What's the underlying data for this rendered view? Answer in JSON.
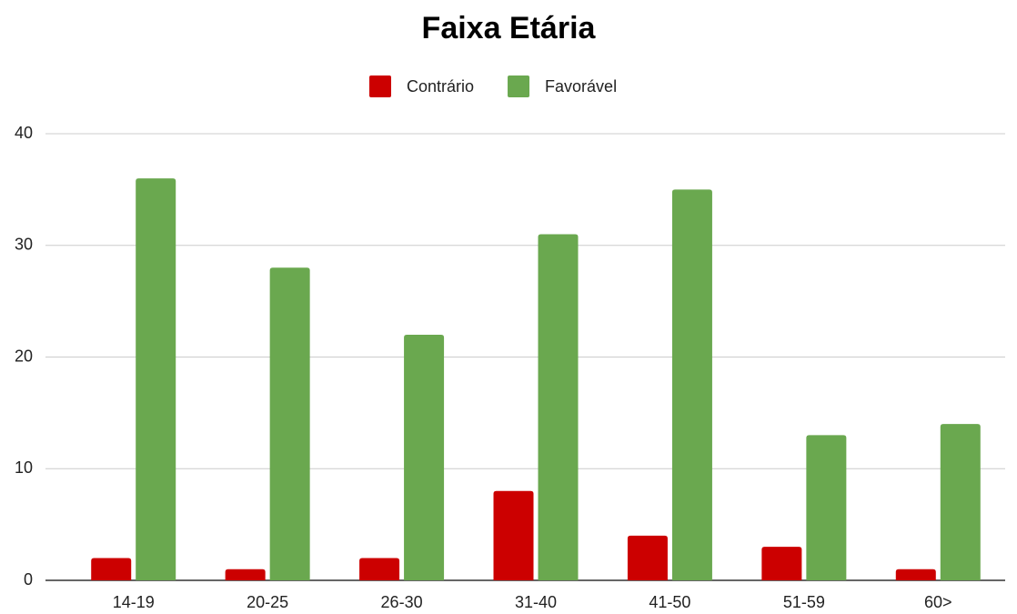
{
  "chart_data": {
    "type": "bar",
    "title": "Faixa Etária",
    "categories": [
      "14-19",
      "20-25",
      "26-30",
      "31-40",
      "41-50",
      "51-59",
      "60>"
    ],
    "series": [
      {
        "name": "Contrário",
        "color": "#cc0000",
        "values": [
          2,
          1,
          2,
          8,
          4,
          3,
          1
        ]
      },
      {
        "name": "Favorável",
        "color": "#6aa84f",
        "values": [
          36,
          28,
          22,
          31,
          35,
          13,
          14
        ]
      }
    ],
    "ylim": [
      0,
      40
    ],
    "yticks": [
      0,
      10,
      20,
      30,
      40
    ],
    "grid": true,
    "legend": "top"
  }
}
